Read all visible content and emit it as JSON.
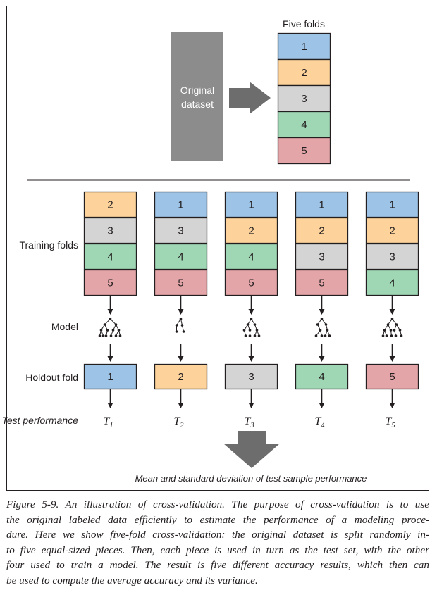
{
  "colors": {
    "fold_1": "#9dc3e6",
    "fold_2": "#fdd29b",
    "fold_3": "#d4d4d4",
    "fold_4": "#9fd6b4",
    "fold_5": "#e4a5a8",
    "dataset_box": "#8c8c8c",
    "arrow_gray": "#6d6d6d",
    "line": "#231f20"
  },
  "top": {
    "dataset_label_line1": "Original",
    "dataset_label_line2": "dataset",
    "five_folds_title": "Five folds",
    "folds": [
      "1",
      "2",
      "3",
      "4",
      "5"
    ]
  },
  "rows": {
    "training_folds": "Training folds",
    "model": "Model",
    "holdout_fold": "Holdout fold",
    "test_performance": "Test performance"
  },
  "columns": [
    {
      "training": [
        "2",
        "3",
        "4",
        "5"
      ],
      "holdout": "1",
      "perf_symbol": "T",
      "perf_sub": "1"
    },
    {
      "training": [
        "1",
        "3",
        "4",
        "5"
      ],
      "holdout": "2",
      "perf_symbol": "T",
      "perf_sub": "2"
    },
    {
      "training": [
        "1",
        "2",
        "4",
        "5"
      ],
      "holdout": "3",
      "perf_symbol": "T",
      "perf_sub": "3"
    },
    {
      "training": [
        "1",
        "2",
        "3",
        "5"
      ],
      "holdout": "4",
      "perf_symbol": "T",
      "perf_sub": "4"
    },
    {
      "training": [
        "1",
        "2",
        "3",
        "4"
      ],
      "holdout": "5",
      "perf_symbol": "T",
      "perf_sub": "5"
    }
  ],
  "summary": "Mean and standard deviation of test sample performance",
  "caption": {
    "lines": [
      "Figure 5-9. An illustration of cross-validation. The purpose of cross-validation is to use",
      "the original labeled data efficiently to estimate the performance of a modeling proce-",
      "dure. Here we show five-fold cross-validation: the original dataset is split randomly in-",
      "to five equal-sized pieces. Then, each piece is used in turn as the test set, with the other",
      "four used to train a model. The result is five different accuracy results, which then can",
      "be used to compute the average accuracy and its variance."
    ]
  }
}
